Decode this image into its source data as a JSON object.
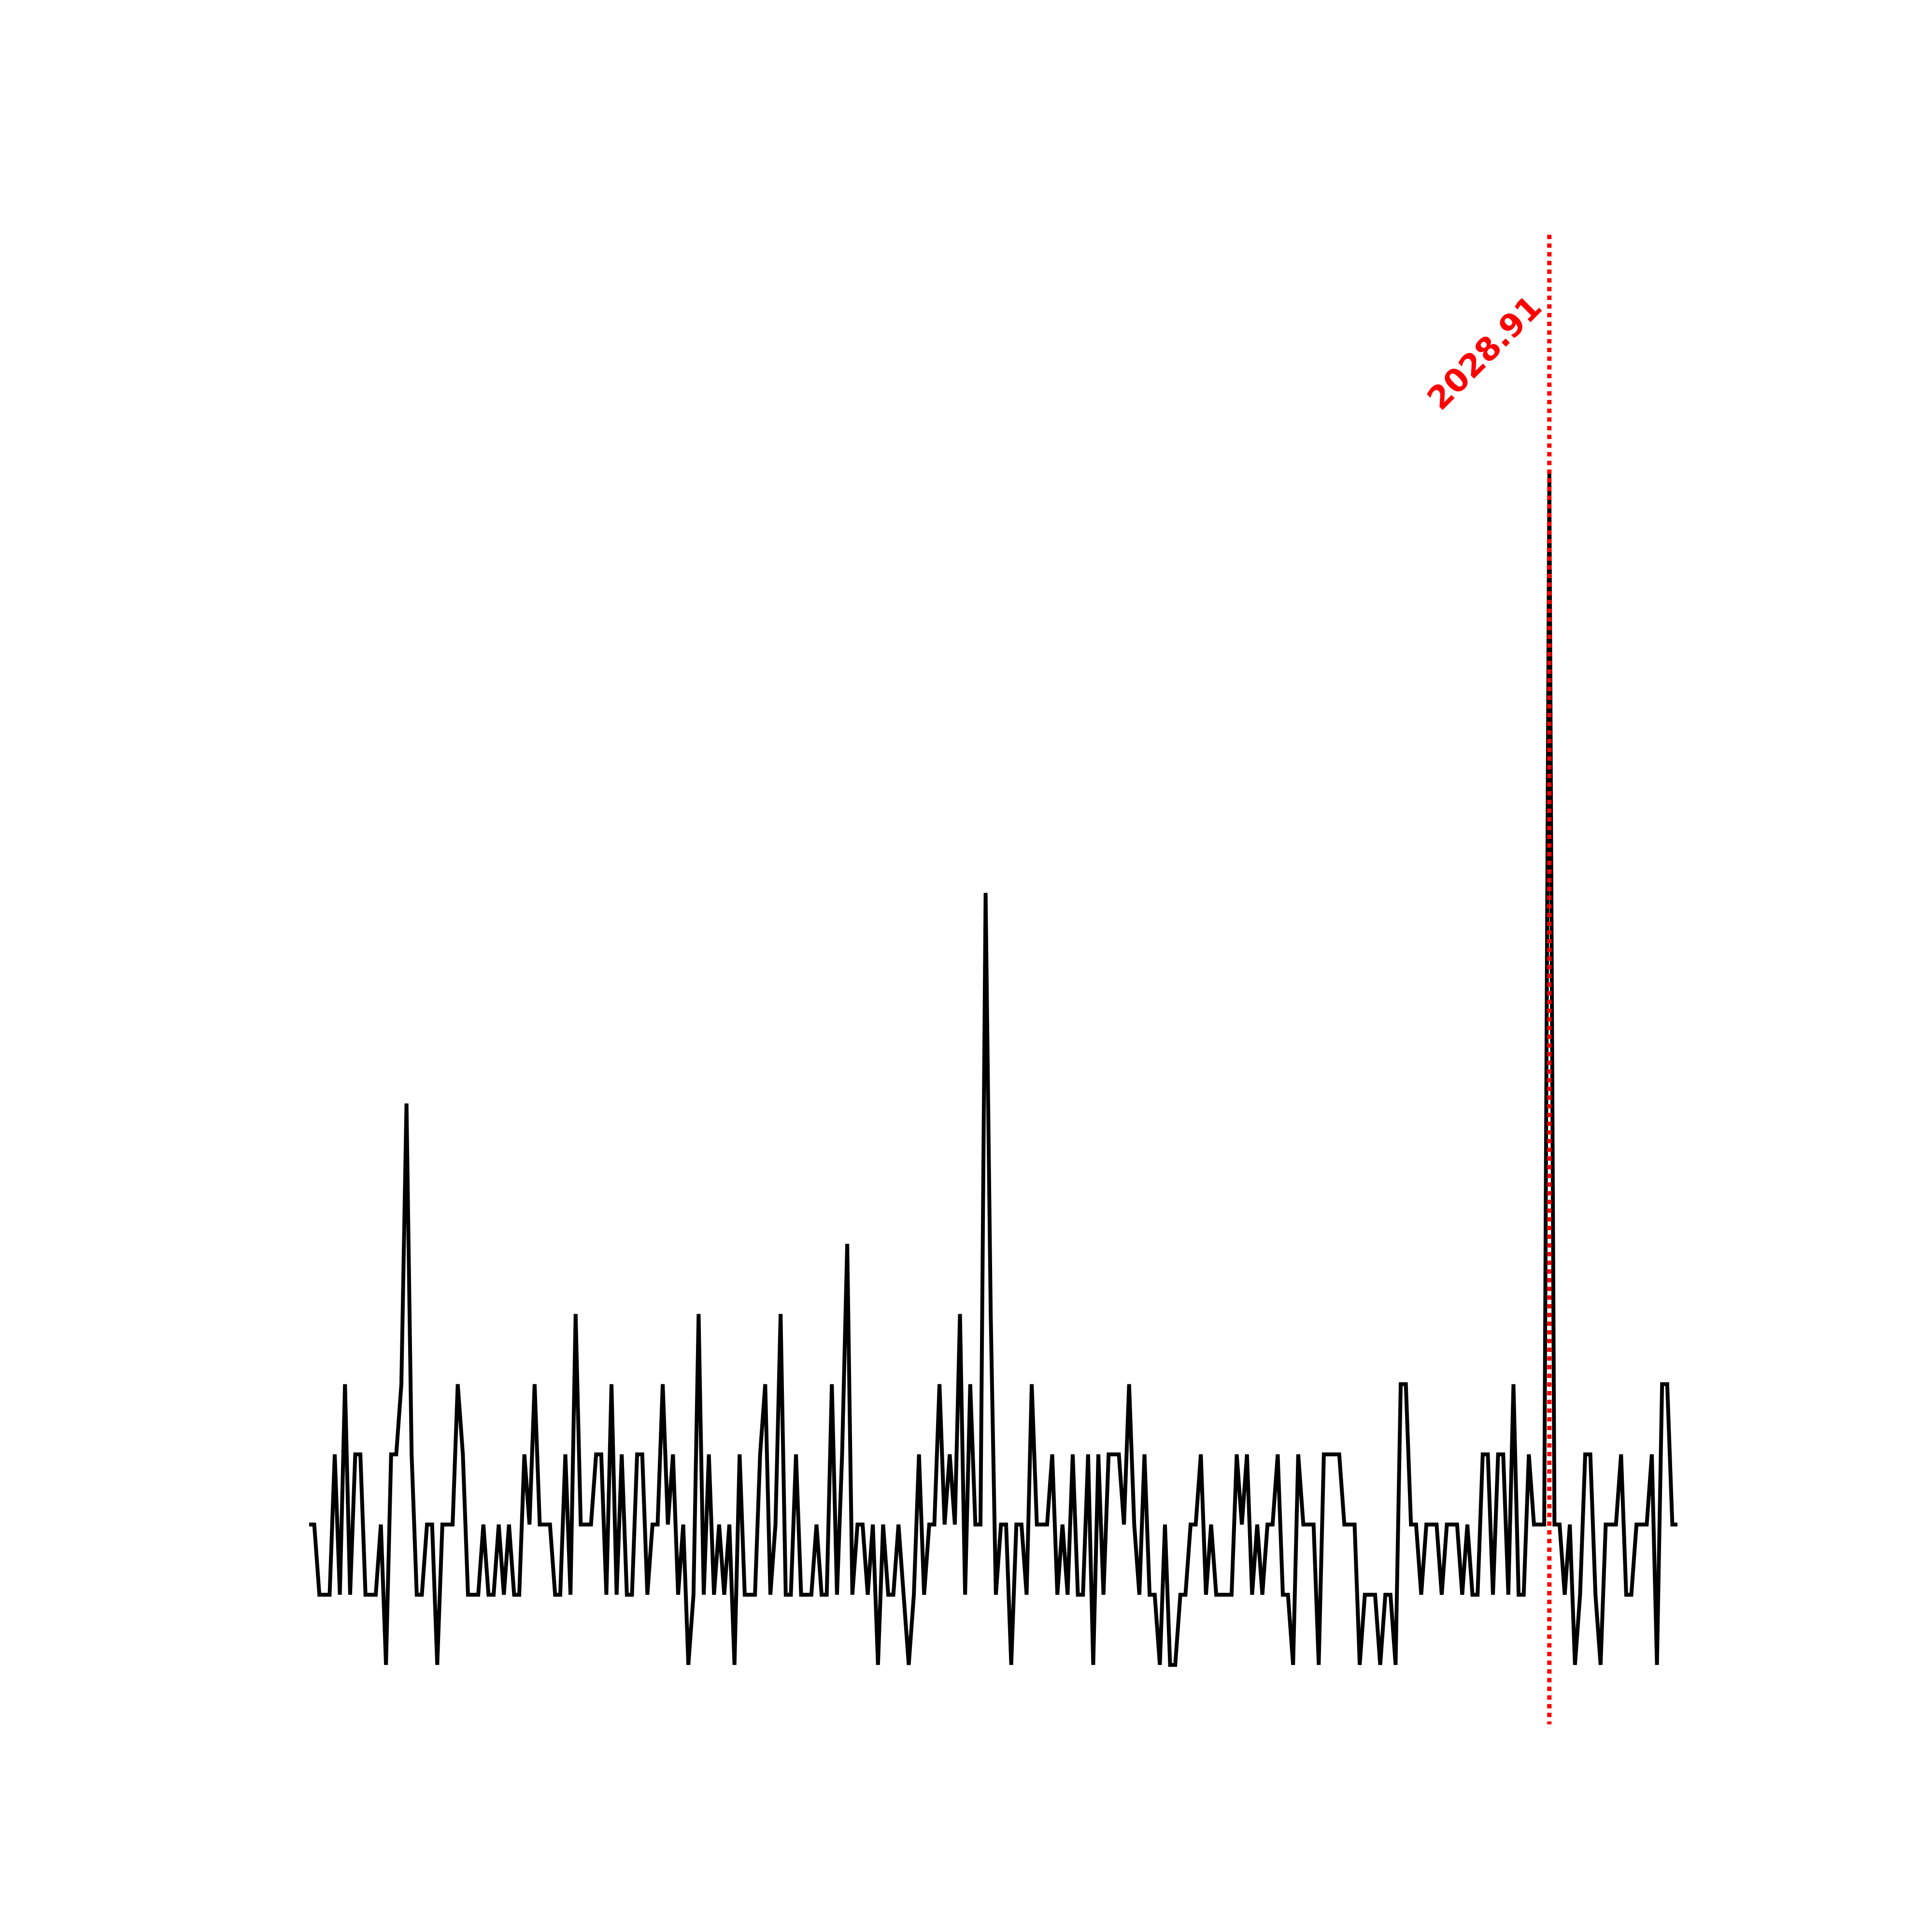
{
  "chart_data": {
    "type": "line",
    "series": [
      {
        "color": "#000000",
        "values": [
          2,
          2,
          1,
          1,
          1,
          3,
          1,
          4,
          1,
          3,
          3,
          1,
          1,
          1,
          2,
          0,
          3,
          3,
          4,
          8,
          3,
          1,
          1,
          2,
          2,
          0,
          2,
          2,
          2,
          4,
          3,
          1,
          1,
          1,
          2,
          1,
          1,
          2,
          1,
          2,
          1,
          1,
          3,
          2,
          4,
          2,
          2,
          2,
          1,
          1,
          3,
          1,
          5,
          2,
          2,
          2,
          3,
          3,
          1,
          4,
          1,
          3,
          1,
          1,
          3,
          3,
          1,
          2,
          2,
          4,
          2,
          3,
          1,
          2,
          0,
          1,
          5,
          1,
          3,
          1,
          2,
          1,
          2,
          0,
          3,
          1,
          1,
          1,
          3,
          4,
          1,
          2,
          5,
          1,
          1,
          3,
          1,
          1,
          1,
          2,
          1,
          1,
          4,
          1,
          3,
          6,
          1,
          2,
          2,
          1,
          2,
          0,
          2,
          1,
          1,
          2,
          1,
          0,
          1,
          3,
          1,
          2,
          2,
          4,
          2,
          3,
          2,
          5,
          1,
          4,
          2,
          2,
          11,
          5,
          1,
          2,
          2,
          0,
          2,
          2,
          1,
          4,
          2,
          2,
          2,
          3,
          1,
          2,
          1,
          3,
          1,
          1,
          3,
          0,
          3,
          1,
          3,
          3,
          3,
          2,
          4,
          2,
          1,
          3,
          1,
          1,
          0,
          2,
          0,
          0,
          1,
          1,
          2,
          2,
          3,
          1,
          2,
          1,
          1,
          1,
          1,
          3,
          2,
          3,
          1,
          2,
          1,
          2,
          2,
          3,
          1,
          1,
          0,
          3,
          2,
          2,
          2,
          0,
          3,
          3,
          3,
          3,
          2,
          2,
          2,
          0,
          1,
          1,
          1,
          0,
          1,
          1,
          0,
          4,
          4,
          2,
          2,
          1,
          2,
          2,
          2,
          1,
          2,
          2,
          2,
          1,
          2,
          1,
          1,
          3,
          3,
          1,
          3,
          3,
          1,
          4,
          1,
          1,
          3,
          2,
          2,
          2,
          17,
          2,
          2,
          1,
          2,
          0,
          1,
          3,
          3,
          1,
          0,
          2,
          2,
          2,
          3,
          1,
          1,
          2,
          2,
          2,
          3,
          0,
          4,
          4,
          2,
          2
        ]
      }
    ],
    "annotation": {
      "text": "2028.91",
      "color": "#ff0000"
    }
  }
}
